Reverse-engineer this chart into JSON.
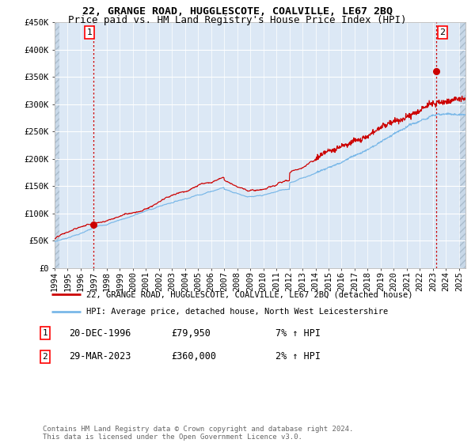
{
  "title": "22, GRANGE ROAD, HUGGLESCOTE, COALVILLE, LE67 2BQ",
  "subtitle": "Price paid vs. HM Land Registry's House Price Index (HPI)",
  "ylim": [
    0,
    450000
  ],
  "yticks": [
    0,
    50000,
    100000,
    150000,
    200000,
    250000,
    300000,
    350000,
    400000,
    450000
  ],
  "xstart": 1994.0,
  "xend": 2025.5,
  "transaction1_date": 1996.97,
  "transaction1_price": 79950,
  "transaction2_date": 2023.24,
  "transaction2_price": 360000,
  "hpi_color": "#7ab8e8",
  "price_color": "#cc0000",
  "dot_color": "#cc0000",
  "background_chart": "#dce8f5",
  "grid_color": "#ffffff",
  "legend_label1": "22, GRANGE ROAD, HUGGLESCOTE, COALVILLE, LE67 2BQ (detached house)",
  "legend_label2": "HPI: Average price, detached house, North West Leicestershire",
  "annotation1_date": "20-DEC-1996",
  "annotation1_price": "£79,950",
  "annotation1_hpi": "7% ↑ HPI",
  "annotation2_date": "29-MAR-2023",
  "annotation2_price": "£360,000",
  "annotation2_hpi": "2% ↑ HPI",
  "footer": "Contains HM Land Registry data © Crown copyright and database right 2024.\nThis data is licensed under the Open Government Licence v3.0.",
  "title_fontsize": 9.5,
  "subtitle_fontsize": 9,
  "tick_fontsize": 7.5,
  "legend_fontsize": 7.5,
  "annot_fontsize": 8.5
}
